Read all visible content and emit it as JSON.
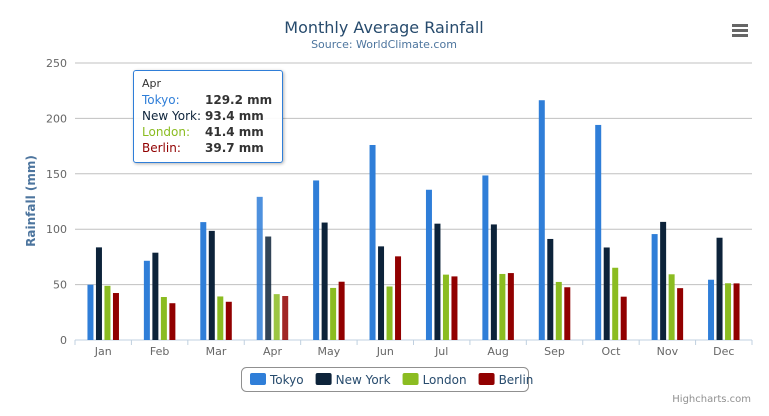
{
  "chart_data": {
    "type": "bar",
    "title": "Monthly Average Rainfall",
    "subtitle": "Source: WorldClimate.com",
    "xlabel": "",
    "ylabel": "Rainfall (mm)",
    "ylim": [
      0,
      250
    ],
    "yticks": [
      0,
      50,
      100,
      150,
      200,
      250
    ],
    "grid": true,
    "legend": "bottom",
    "categories": [
      "Jan",
      "Feb",
      "Mar",
      "Apr",
      "May",
      "Jun",
      "Jul",
      "Aug",
      "Sep",
      "Oct",
      "Nov",
      "Dec"
    ],
    "series": [
      {
        "name": "Tokyo",
        "color": "#2f7ed8",
        "values": [
          49.9,
          71.5,
          106.4,
          129.2,
          144.0,
          176.0,
          135.6,
          148.5,
          216.4,
          194.1,
          95.6,
          54.4
        ]
      },
      {
        "name": "New York",
        "color": "#0d233a",
        "values": [
          83.6,
          78.8,
          98.5,
          93.4,
          106.0,
          84.5,
          105.0,
          104.3,
          91.2,
          83.5,
          106.6,
          92.3
        ]
      },
      {
        "name": "London",
        "color": "#8bbc21",
        "values": [
          48.9,
          38.8,
          39.3,
          41.4,
          47.0,
          48.3,
          59.0,
          59.6,
          52.4,
          65.2,
          59.3,
          51.2
        ]
      },
      {
        "name": "Berlin",
        "color": "#910000",
        "values": [
          42.4,
          33.2,
          34.5,
          39.7,
          52.6,
          75.5,
          57.4,
          60.4,
          47.6,
          39.1,
          46.8,
          51.1
        ]
      }
    ]
  },
  "tooltip": {
    "header": "Apr",
    "rows": [
      {
        "name": "Tokyo:",
        "value": "129.2 mm",
        "color": "#2f7ed8"
      },
      {
        "name": "New York:",
        "value": "93.4 mm",
        "color": "#0d233a"
      },
      {
        "name": "London:",
        "value": "41.4 mm",
        "color": "#8bbc21"
      },
      {
        "name": "Berlin:",
        "value": "39.7 mm",
        "color": "#910000"
      }
    ]
  },
  "credits": "Highcharts.com",
  "menu_icon": "hamburger-menu-icon"
}
